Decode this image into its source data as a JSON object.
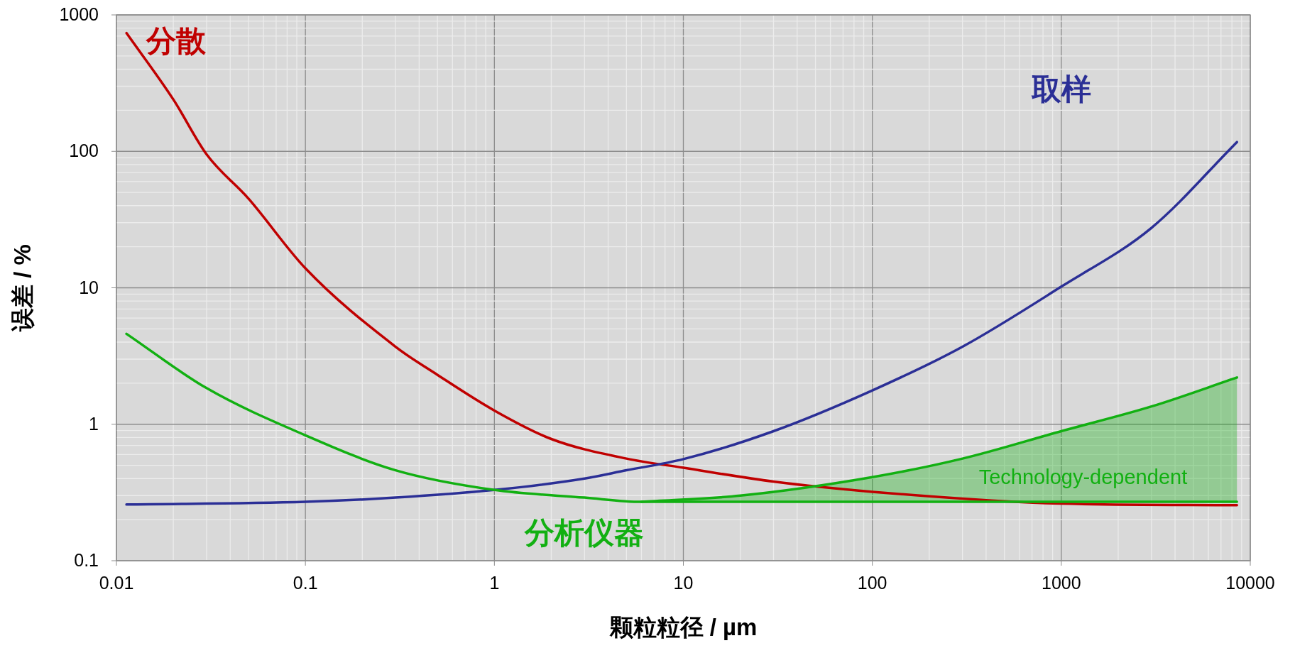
{
  "chart_data": {
    "type": "line",
    "xlabel": "颗粒粒径 / µm",
    "ylabel": "误差 / %",
    "log": "xy",
    "grid": true,
    "xlim": [
      0.01,
      10000
    ],
    "xticks": [
      0.01,
      0.1,
      1,
      10,
      100,
      1000,
      10000
    ],
    "ylim": [
      0.1,
      1000
    ],
    "yticks": [
      0.1,
      1,
      10,
      100,
      1000
    ],
    "series": [
      {
        "name": "分散",
        "color": "#c00000",
        "x": [
          0.0113,
          0.02,
          0.03,
          0.05,
          0.1,
          0.3,
          0.5,
          1,
          2,
          5,
          10,
          30,
          100,
          1000,
          8500
        ],
        "values": [
          736,
          240,
          95,
          45,
          13.9,
          3.7,
          2.3,
          1.26,
          0.78,
          0.56,
          0.48,
          0.38,
          0.32,
          0.262,
          0.255
        ]
      },
      {
        "name": "取样",
        "color": "#2b2f96",
        "x": [
          0.0113,
          0.1,
          0.3,
          1,
          3,
          5,
          10,
          30,
          100,
          300,
          1000,
          3000,
          8500
        ],
        "values": [
          0.258,
          0.27,
          0.29,
          0.33,
          0.4,
          0.46,
          0.555,
          0.89,
          1.77,
          3.7,
          10.2,
          27.5,
          117
        ]
      },
      {
        "name": "分析仪器",
        "color": "#12b012",
        "x": [
          0.0113,
          0.03,
          0.1,
          0.3,
          1,
          3,
          6,
          100,
          8500
        ],
        "values": [
          4.6,
          1.84,
          0.83,
          0.46,
          0.33,
          0.29,
          0.27,
          0.27,
          0.27
        ]
      },
      {
        "name": "Technology-dependent",
        "color": "#12b012",
        "x": [
          6,
          20,
          100,
          300,
          1000,
          3000,
          8500
        ],
        "values": [
          0.27,
          0.3,
          0.41,
          0.56,
          0.89,
          1.35,
          2.2
        ],
        "lower": [
          0.27,
          0.27,
          0.27,
          0.27,
          0.27,
          0.27,
          0.27
        ],
        "upper": [
          0.27,
          0.3,
          0.41,
          0.56,
          0.89,
          1.35,
          2.2
        ]
      }
    ]
  }
}
